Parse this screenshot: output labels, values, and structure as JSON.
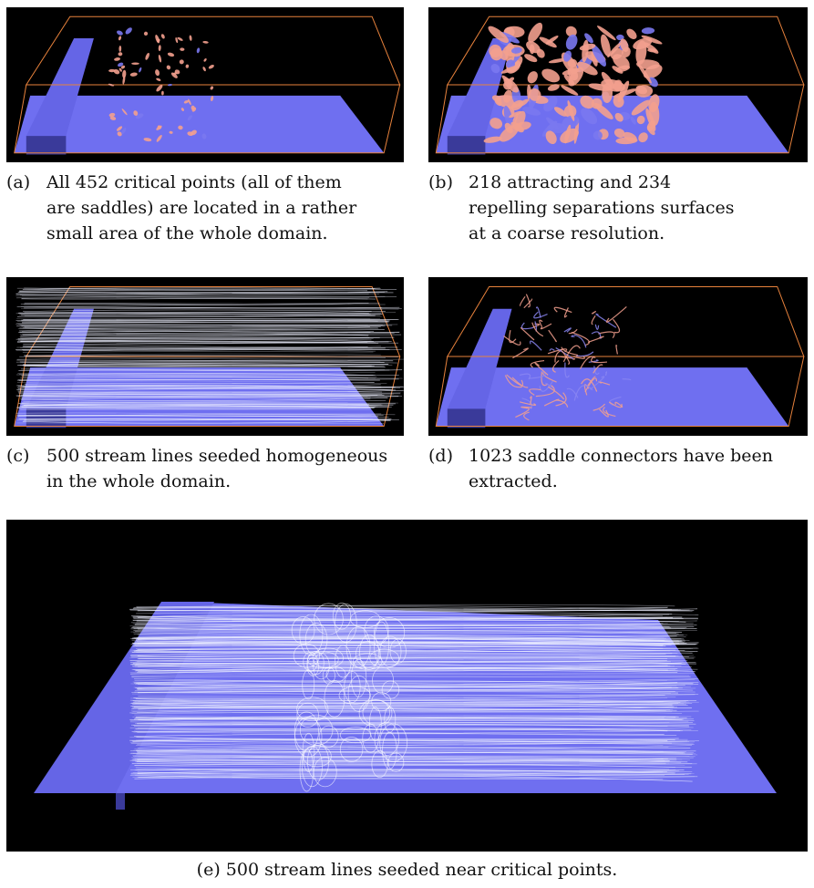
{
  "figure": {
    "panels": [
      {
        "id": "a",
        "label": "(a)",
        "caption": "All 452 critical points (all of them are saddles) are located in a rather small area of the whole domain."
      },
      {
        "id": "b",
        "label": "(b)",
        "caption": "218 attracting and 234 repelling separations surfaces at a coarse resolution."
      },
      {
        "id": "c",
        "label": "(c)",
        "caption": "500 stream lines seeded homogeneous in the whole domain."
      },
      {
        "id": "d",
        "label": "(d)",
        "caption": "1023 saddle connectors have been extracted."
      },
      {
        "id": "e",
        "label": "(e)",
        "caption": "500 stream lines seeded near critical points."
      }
    ],
    "colors": {
      "background": "#000000",
      "floor": "#6f6ff0",
      "step": "#6565e6",
      "step_side": "#3a3a9a",
      "bounding_box": "#e8823c",
      "surfaces": "#f3a08e",
      "stream_lines": "#eef0ff"
    }
  }
}
